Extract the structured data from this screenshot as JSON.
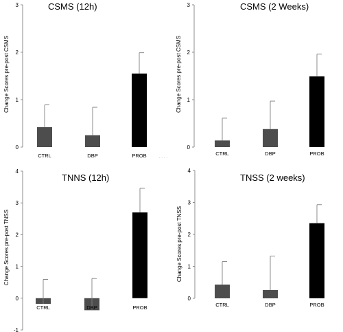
{
  "chart_data": [
    {
      "type": "bar",
      "title": "CSMS (12h)",
      "ylabel": "Change Scores pre-post CSMS",
      "categories": [
        "CTRL",
        "DBP",
        "PROB"
      ],
      "values": [
        0.42,
        0.25,
        1.55
      ],
      "errors": [
        0.47,
        0.59,
        0.44
      ],
      "ylim": [
        0,
        3
      ],
      "yticks": [
        "0",
        "1",
        "2",
        "3"
      ],
      "colors": [
        "#4d4d4d",
        "#4d4d4d",
        "#000000"
      ],
      "grid": false
    },
    {
      "type": "bar",
      "title": "CSMS (2 Weeks)",
      "ylabel": "Change Scores pre-post CSMS",
      "categories": [
        "CTRL",
        "DBP",
        "PROB"
      ],
      "values": [
        0.14,
        0.38,
        1.49
      ],
      "errors": [
        0.47,
        0.59,
        0.47
      ],
      "ylim": [
        0,
        3
      ],
      "yticks": [
        "0",
        "1",
        "2",
        "3"
      ],
      "colors": [
        "#4d4d4d",
        "#4d4d4d",
        "#000000"
      ],
      "grid": false
    },
    {
      "type": "bar",
      "title": "TNNS (12h)",
      "ylabel": "Change Scores pre-post TNSS",
      "categories": [
        "CTRL",
        "DBP",
        "PROB"
      ],
      "values": [
        -0.18,
        -0.38,
        2.7
      ],
      "errors": [
        0.77,
        1.0,
        0.76
      ],
      "ylim": [
        -1,
        4
      ],
      "yticks": [
        "-1",
        "0",
        "1",
        "2",
        "3",
        "4"
      ],
      "colors": [
        "#4d4d4d",
        "#4d4d4d",
        "#000000"
      ],
      "grid": false
    },
    {
      "type": "bar",
      "title": "TNSS (2 weeks)",
      "ylabel": "Change Scores pre-post TNSS",
      "categories": [
        "CTRL",
        "DBP",
        "PROB"
      ],
      "values": [
        0.43,
        0.26,
        2.35
      ],
      "errors": [
        0.72,
        1.06,
        0.58
      ],
      "ylim": [
        0,
        4
      ],
      "yticks": [
        "0",
        "1",
        "2",
        "3",
        "4"
      ],
      "colors": [
        "#4d4d4d",
        "#4d4d4d",
        "#000000"
      ],
      "grid": false
    }
  ]
}
